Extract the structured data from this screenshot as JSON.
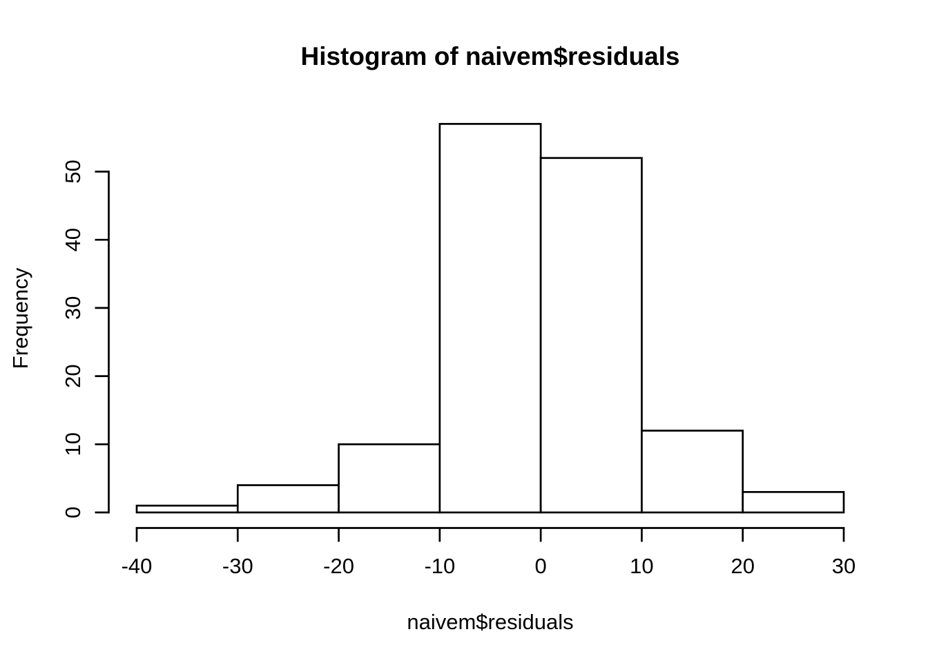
{
  "chart_data": {
    "type": "bar",
    "subtype": "histogram",
    "title": "Histogram of naivem$residuals",
    "xlabel": "naivem$residuals",
    "ylabel": "Frequency",
    "breaks": [
      -40,
      -30,
      -20,
      -10,
      0,
      10,
      20,
      30
    ],
    "counts": [
      1,
      4,
      10,
      57,
      52,
      12,
      3
    ],
    "x_ticks": [
      "-40",
      "-30",
      "-20",
      "-10",
      "0",
      "10",
      "20",
      "30"
    ],
    "x_tick_values": [
      -40,
      -30,
      -20,
      -10,
      0,
      10,
      20,
      30
    ],
    "y_ticks": [
      "0",
      "10",
      "20",
      "30",
      "40",
      "50"
    ],
    "y_tick_values": [
      0,
      10,
      20,
      30,
      40,
      50
    ],
    "xlim": [
      -40,
      30
    ],
    "ylim": [
      0,
      57
    ],
    "y_axis_span": [
      0,
      50
    ],
    "grid": false,
    "legend": "none",
    "bar_fill": "#ffffff",
    "bar_stroke": "#000000",
    "axis_color": "#000000",
    "text_color": "#000000",
    "background": "#ffffff"
  }
}
